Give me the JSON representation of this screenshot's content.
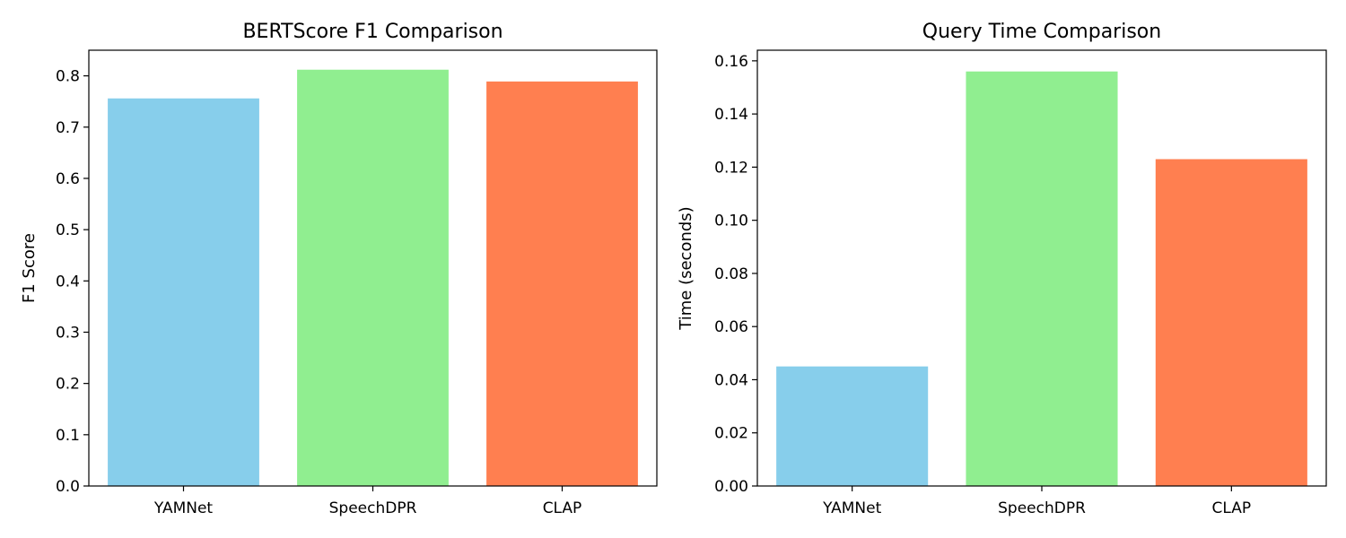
{
  "chart_data": [
    {
      "type": "bar",
      "title": "BERTScore F1 Comparison",
      "xlabel": "",
      "ylabel": "F1 Score",
      "categories": [
        "YAMNet",
        "SpeechDPR",
        "CLAP"
      ],
      "values": [
        0.756,
        0.812,
        0.789
      ],
      "colors": [
        "#87ceeb",
        "#90ee90",
        "#ff7f50"
      ],
      "ylim": [
        0,
        0.85
      ],
      "yticks": [
        0.0,
        0.1,
        0.2,
        0.3,
        0.4,
        0.5,
        0.6,
        0.7,
        0.8
      ],
      "ytick_labels": [
        "0.0",
        "0.1",
        "0.2",
        "0.3",
        "0.4",
        "0.5",
        "0.6",
        "0.7",
        "0.8"
      ],
      "grid": false,
      "legend": "none"
    },
    {
      "type": "bar",
      "title": "Query Time Comparison",
      "xlabel": "",
      "ylabel": "Time (seconds)",
      "categories": [
        "YAMNet",
        "SpeechDPR",
        "CLAP"
      ],
      "values": [
        0.045,
        0.156,
        0.123
      ],
      "colors": [
        "#87ceeb",
        "#90ee90",
        "#ff7f50"
      ],
      "ylim": [
        0,
        0.164
      ],
      "yticks": [
        0.0,
        0.02,
        0.04,
        0.06,
        0.08,
        0.1,
        0.12,
        0.14,
        0.16
      ],
      "ytick_labels": [
        "0.00",
        "0.02",
        "0.04",
        "0.06",
        "0.08",
        "0.10",
        "0.12",
        "0.14",
        "0.16"
      ],
      "grid": false,
      "legend": "none"
    }
  ]
}
